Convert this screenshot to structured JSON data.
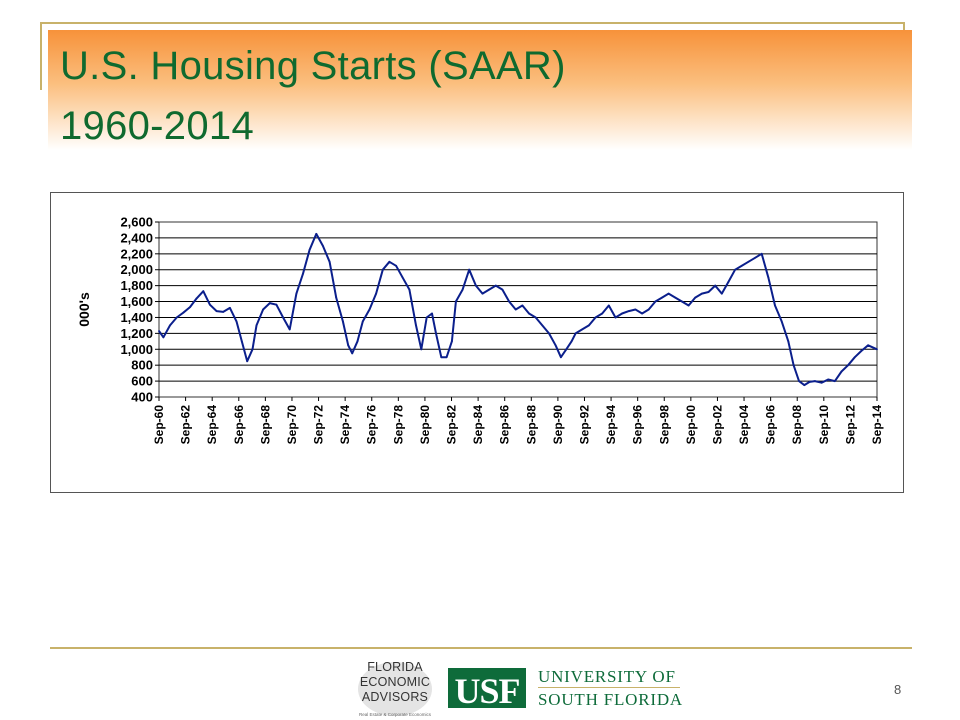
{
  "slide": {
    "title_line1": "U.S. Housing Starts (SAAR)",
    "title_line2": "1960-2014",
    "page_number": "8"
  },
  "colors": {
    "title_green": "#0f6a2f",
    "title_gradient_top": "#f7923a",
    "accent_gold": "#c8b26a",
    "series_navy": "#0b1f8c",
    "usf_green": "#0e6b3a"
  },
  "footer": {
    "fea_lines": [
      "FLORIDA",
      "ECONOMIC",
      "ADVISORS"
    ],
    "fea_tagline": "Real Estate & Corporate Economics",
    "usf_mark": "USF",
    "university_line1": "UNIVERSITY OF",
    "university_line2": "SOUTH FLORIDA"
  },
  "chart_data": {
    "type": "line",
    "title": "",
    "xlabel": "",
    "ylabel": "000's",
    "ylim": [
      400,
      2600
    ],
    "yticks": [
      400,
      600,
      800,
      1000,
      1200,
      1400,
      1600,
      1800,
      2000,
      2200,
      2400,
      2600
    ],
    "yticklabels": [
      "400",
      "600",
      "800",
      "1,000",
      "1,200",
      "1,400",
      "1,600",
      "1,800",
      "2,000",
      "2,200",
      "2,400",
      "2,600"
    ],
    "xlim": [
      1960.67,
      2014.67
    ],
    "xticks": [
      1960.67,
      1962.67,
      1964.67,
      1966.67,
      1968.67,
      1970.67,
      1972.67,
      1974.67,
      1976.67,
      1978.67,
      1980.67,
      1982.67,
      1984.67,
      1986.67,
      1988.67,
      1990.67,
      1992.67,
      1994.67,
      1996.67,
      1998.67,
      2000.67,
      2002.67,
      2004.67,
      2006.67,
      2008.67,
      2010.67,
      2012.67,
      2014.67
    ],
    "xticklabels": [
      "Sep-60",
      "Sep-62",
      "Sep-64",
      "Sep-66",
      "Sep-68",
      "Sep-70",
      "Sep-72",
      "Sep-74",
      "Sep-76",
      "Sep-78",
      "Sep-80",
      "Sep-82",
      "Sep-84",
      "Sep-86",
      "Sep-88",
      "Sep-90",
      "Sep-92",
      "Sep-94",
      "Sep-96",
      "Sep-98",
      "Sep-00",
      "Sep-02",
      "Sep-04",
      "Sep-06",
      "Sep-08",
      "Sep-10",
      "Sep-12",
      "Sep-14"
    ],
    "grid": "horizontal",
    "legend": "none",
    "series": [
      {
        "x": [
          1960.67,
          1961.0,
          1961.5,
          1962.0,
          1962.5,
          1963.0,
          1963.5,
          1964.0,
          1964.5,
          1965.0,
          1965.5,
          1966.0,
          1966.5,
          1966.9,
          1967.3,
          1967.7,
          1968.0,
          1968.5,
          1969.0,
          1969.5,
          1970.0,
          1970.5,
          1971.0,
          1971.5,
          1972.0,
          1972.5,
          1973.0,
          1973.5,
          1974.0,
          1974.5,
          1974.9,
          1975.2,
          1975.6,
          1976.0,
          1976.5,
          1977.0,
          1977.5,
          1978.0,
          1978.5,
          1979.0,
          1979.5,
          1980.0,
          1980.4,
          1980.8,
          1981.2,
          1981.5,
          1981.9,
          1982.3,
          1982.7,
          1983.0,
          1983.5,
          1984.0,
          1984.5,
          1985.0,
          1985.5,
          1986.0,
          1986.5,
          1987.0,
          1987.5,
          1988.0,
          1988.5,
          1989.0,
          1989.5,
          1990.0,
          1990.5,
          1990.9,
          1991.3,
          1991.7,
          1992.0,
          1992.5,
          1993.0,
          1993.5,
          1994.0,
          1994.5,
          1995.0,
          1995.5,
          1996.0,
          1996.5,
          1997.0,
          1997.5,
          1998.0,
          1998.5,
          1999.0,
          1999.5,
          2000.0,
          2000.5,
          2001.0,
          2001.5,
          2002.0,
          2002.5,
          2003.0,
          2003.5,
          2004.0,
          2004.5,
          2005.0,
          2005.5,
          2006.0,
          2006.5,
          2007.0,
          2007.5,
          2008.0,
          2008.4,
          2008.8,
          2009.2,
          2009.6,
          2010.0,
          2010.5,
          2011.0,
          2011.5,
          2012.0,
          2012.5,
          2013.0,
          2013.5,
          2014.0,
          2014.67
        ],
        "y": [
          1230,
          1150,
          1300,
          1400,
          1460,
          1530,
          1640,
          1730,
          1560,
          1480,
          1470,
          1520,
          1350,
          1100,
          850,
          1000,
          1300,
          1500,
          1580,
          1560,
          1400,
          1250,
          1700,
          1950,
          2250,
          2450,
          2300,
          2100,
          1650,
          1350,
          1050,
          950,
          1100,
          1350,
          1500,
          1700,
          2000,
          2100,
          2050,
          1900,
          1750,
          1300,
          1000,
          1400,
          1450,
          1200,
          900,
          900,
          1100,
          1600,
          1750,
          2000,
          1800,
          1700,
          1750,
          1800,
          1750,
          1600,
          1500,
          1550,
          1450,
          1400,
          1300,
          1200,
          1050,
          900,
          1000,
          1100,
          1200,
          1250,
          1300,
          1400,
          1450,
          1550,
          1400,
          1450,
          1480,
          1500,
          1450,
          1500,
          1600,
          1650,
          1700,
          1650,
          1600,
          1550,
          1650,
          1700,
          1720,
          1800,
          1700,
          1850,
          2000,
          2050,
          2100,
          2150,
          2200,
          1900,
          1550,
          1350,
          1100,
          800,
          600,
          550,
          590,
          600,
          580,
          620,
          600,
          720,
          800,
          900,
          980,
          1050,
          1000
        ]
      }
    ]
  }
}
